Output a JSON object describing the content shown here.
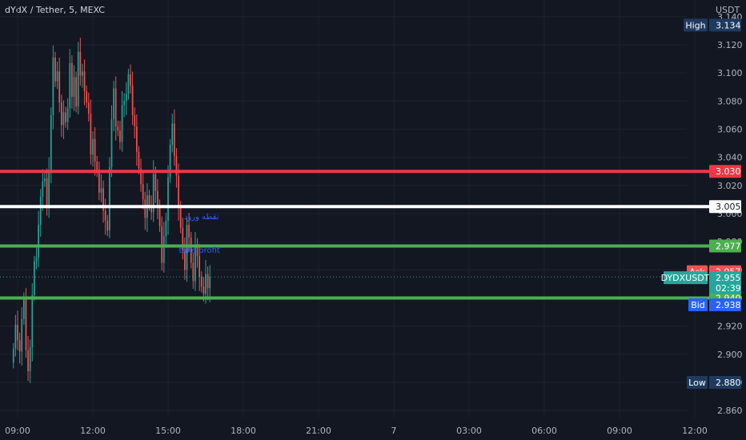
{
  "header": {
    "title": "dYdX / Tether, 5, MEXC"
  },
  "colors": {
    "background": "#131722",
    "up": "#26a69a",
    "down": "#ef5350",
    "red_line": "#f23645",
    "white_line": "#ffffff",
    "green_line": "#4caf50",
    "blue_tag": "#2962ff",
    "navy_tag": "#1e3a5f"
  },
  "chart_data": {
    "type": "candlestick",
    "title": "dYdX / Tether, 5, MEXC",
    "yunit": "USDT",
    "ylim": [
      2.855,
      3.145
    ],
    "y_ticks": [
      2.86,
      2.88,
      2.9,
      2.92,
      2.94,
      2.96,
      2.98,
      3.0,
      3.02,
      3.04,
      3.06,
      3.08,
      3.1,
      3.12,
      3.14
    ],
    "x_ticks": [
      "09:00",
      "12:00",
      "15:00",
      "18:00",
      "21:00",
      "7",
      "03:00",
      "06:00",
      "09:00",
      "12:00"
    ],
    "horizontal_lines": [
      {
        "value": 3.03,
        "color": "#f23645",
        "label": "3.030"
      },
      {
        "value": 3.005,
        "color": "#ffffff",
        "label": "3.005"
      },
      {
        "value": 2.977,
        "color": "#4caf50",
        "label": "2.977"
      },
      {
        "value": 2.94,
        "color": "#4caf50",
        "label": "2.940"
      }
    ],
    "price_tags": {
      "high": {
        "label": "High",
        "value": "3.134"
      },
      "low": {
        "label": "Low",
        "value": "2.880"
      },
      "ask": {
        "label": "Ask",
        "value": "2.957"
      },
      "symbol": {
        "label": "DYDXUSDT",
        "value": "2.955",
        "countdown": "02:39"
      },
      "bid": {
        "label": "Bid",
        "value": "2.938"
      }
    },
    "annotations": [
      {
        "text": "نقطه ورود",
        "time_index": 90,
        "value": 2.996
      },
      {
        "text": "take profit",
        "time_index": 89,
        "value": 2.972
      }
    ],
    "series": [
      {
        "close": [
          2.904,
          2.921,
          2.91,
          2.902,
          2.925,
          2.94,
          2.903,
          2.888,
          2.905,
          2.942,
          2.966,
          2.969,
          2.992,
          3.012,
          3.023,
          3.025,
          3.004,
          3.03,
          3.07,
          3.111,
          3.094,
          3.101,
          3.079,
          3.063,
          3.072,
          3.065,
          3.075,
          3.107,
          3.083,
          3.097,
          3.076,
          3.115,
          3.098,
          3.101,
          3.087,
          3.079,
          3.071,
          3.042,
          3.053,
          3.037,
          3.03,
          3.015,
          3.018,
          3.002,
          2.995,
          2.988,
          3.033,
          3.067,
          3.089,
          3.062,
          3.059,
          3.051,
          3.077,
          3.08,
          3.085,
          3.099,
          3.091,
          3.07,
          3.062,
          3.044,
          3.032,
          3.021,
          3.01,
          2.997,
          3.013,
          3.006,
          3.001,
          3.028,
          3.016,
          3.006,
          2.991,
          2.965,
          2.984,
          2.995,
          3.026,
          3.049,
          3.064,
          3.041,
          3.027,
          3.005,
          2.99,
          2.973,
          2.96,
          2.992,
          2.983,
          2.965,
          2.952,
          2.977,
          2.97,
          2.955,
          2.948,
          2.943,
          2.957,
          2.947,
          2.955
        ]
      }
    ]
  }
}
